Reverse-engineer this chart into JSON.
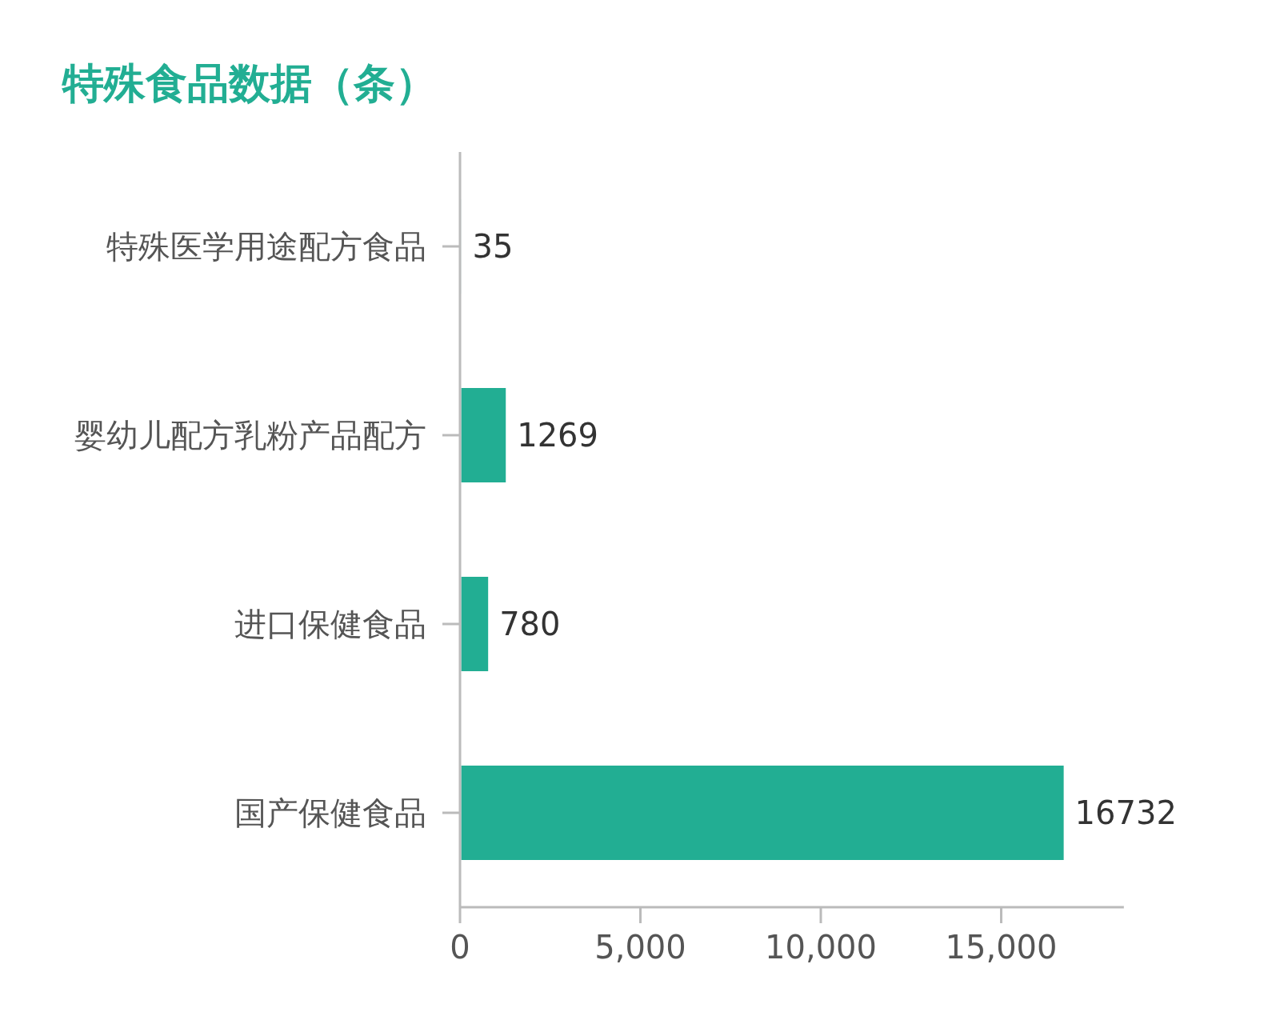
{
  "chart_data": {
    "type": "bar",
    "orientation": "horizontal",
    "title": "特殊食品数据（条）",
    "categories": [
      "特殊医学用途配方食品",
      "婴幼儿配方乳粉产品配方",
      "进口保健食品",
      "国产保健食品"
    ],
    "values": [
      35,
      1269,
      780,
      16732
    ],
    "color": "#22ae93",
    "xlim": [
      0,
      18400
    ],
    "xticks": [
      0,
      {
        "value": 5000,
        "label": "5,000"
      },
      {
        "value": 10000,
        "label": "10,000"
      },
      {
        "value": 15000,
        "label": "15,000"
      }
    ],
    "data_labels": true,
    "grid": false
  }
}
